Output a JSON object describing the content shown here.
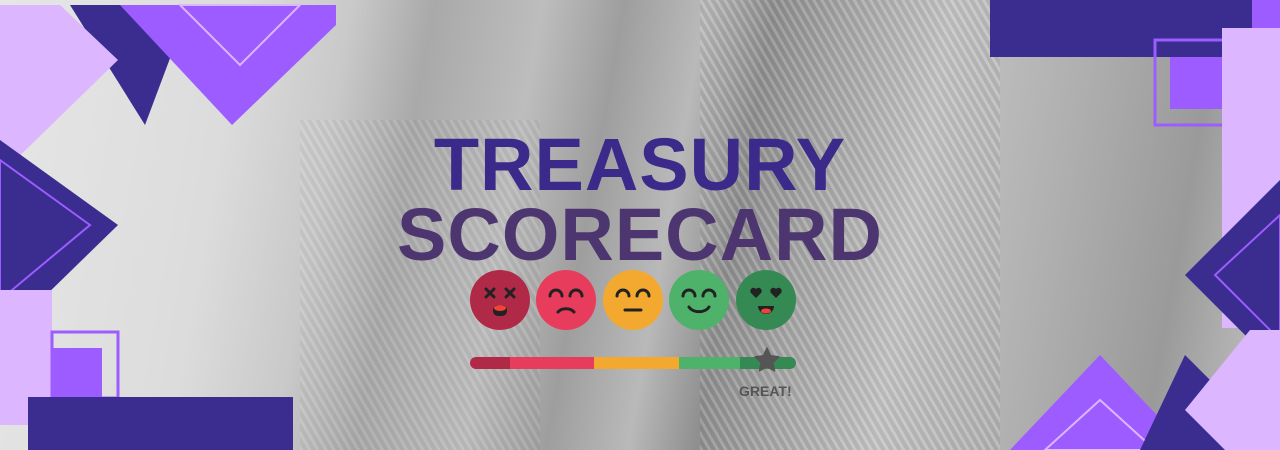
{
  "banner": {
    "title_line1": "TREASURY",
    "title_line2": "SCORECARD",
    "rating_label": "GREAT!",
    "rating_value_percent": 91
  },
  "faces": [
    {
      "name": "dizzy-face-icon",
      "color": "#b02a48"
    },
    {
      "name": "sad-face-icon",
      "color": "#e83c5c"
    },
    {
      "name": "neutral-face-icon",
      "color": "#f3a92f"
    },
    {
      "name": "smile-face-icon",
      "color": "#4fb26a"
    },
    {
      "name": "heart-eyes-face-icon",
      "color": "#348a52"
    }
  ],
  "colors": {
    "dark_purple": "#3a2d8f",
    "violet": "#9d5cff",
    "lavender": "#dcb6ff"
  }
}
